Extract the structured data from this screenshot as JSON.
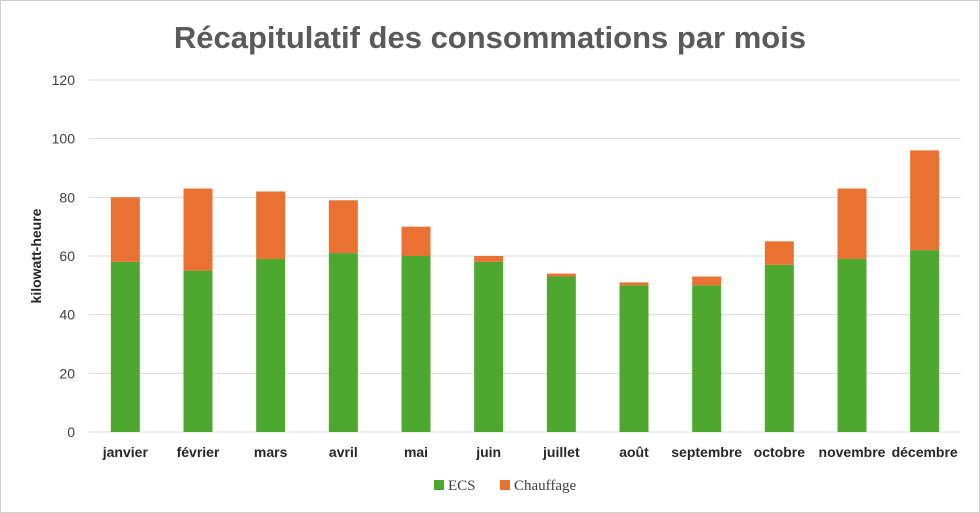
{
  "chart_data": {
    "type": "bar",
    "stacked": true,
    "title": "Récapitulatif des consommations par mois",
    "xlabel": "",
    "ylabel": "kilowatt-heure",
    "ylim": [
      0,
      120
    ],
    "yticks": [
      0,
      20,
      40,
      60,
      80,
      100,
      120
    ],
    "grid": true,
    "legend_position": "bottom",
    "categories": [
      "janvier",
      "février",
      "mars",
      "avril",
      "mai",
      "juin",
      "juillet",
      "août",
      "septembre",
      "octobre",
      "novembre",
      "décembre"
    ],
    "series": [
      {
        "name": "ECS",
        "color": "#4ea72e",
        "values": [
          58,
          55,
          59,
          61,
          60,
          58,
          53,
          50,
          50,
          57,
          59,
          62
        ]
      },
      {
        "name": "Chauffage",
        "color": "#e97132",
        "values": [
          22,
          28,
          23,
          18,
          10,
          2,
          1,
          1,
          3,
          8,
          24,
          34
        ]
      }
    ]
  }
}
